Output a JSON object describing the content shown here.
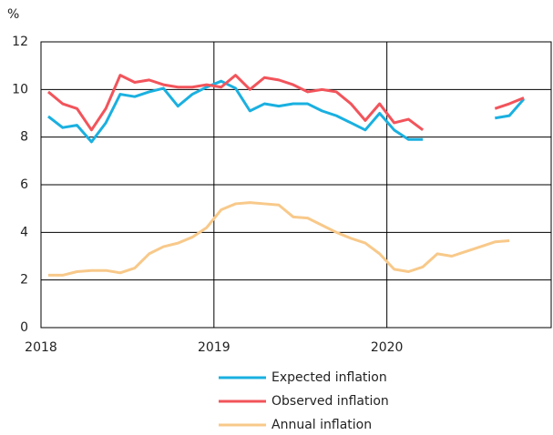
{
  "chart_data": {
    "type": "line",
    "ylabel": "%",
    "x": [
      2018.042,
      2018.125,
      2018.208,
      2018.292,
      2018.375,
      2018.458,
      2018.542,
      2018.625,
      2018.708,
      2018.792,
      2018.875,
      2018.958,
      2019.042,
      2019.125,
      2019.208,
      2019.292,
      2019.375,
      2019.458,
      2019.542,
      2019.625,
      2019.708,
      2019.792,
      2019.875,
      2019.958,
      2020.042,
      2020.125,
      2020.208,
      2020.292,
      2020.375,
      2020.458,
      2020.542,
      2020.625,
      2020.708,
      2020.792
    ],
    "series": [
      {
        "name": "Expected inflation",
        "color": "#1ab0e0",
        "values": [
          8.87,
          8.4,
          8.5,
          7.8,
          8.6,
          9.8,
          9.7,
          9.9,
          10.05,
          9.3,
          9.8,
          10.1,
          10.35,
          10.05,
          9.1,
          9.4,
          9.3,
          9.4,
          9.4,
          9.1,
          8.9,
          8.6,
          8.3,
          9.0,
          8.3,
          7.9,
          7.9,
          null,
          null,
          null,
          null,
          8.8,
          8.9,
          9.6
        ]
      },
      {
        "name": "Observed inflation",
        "color": "#f2545b",
        "values": [
          9.9,
          9.4,
          9.2,
          8.3,
          9.2,
          10.6,
          10.3,
          10.4,
          10.2,
          10.1,
          10.1,
          10.2,
          10.1,
          10.6,
          10.0,
          10.5,
          10.4,
          10.2,
          9.9,
          10.0,
          9.9,
          9.4,
          8.7,
          9.4,
          8.6,
          8.75,
          8.3,
          null,
          null,
          null,
          null,
          9.2,
          9.4,
          9.65
        ]
      },
      {
        "name": "Annual inflation",
        "color": "#f8c98a",
        "values": [
          2.2,
          2.2,
          2.35,
          2.4,
          2.4,
          2.3,
          2.5,
          3.1,
          3.4,
          3.55,
          3.8,
          4.2,
          4.95,
          5.2,
          5.25,
          5.2,
          5.15,
          4.65,
          4.6,
          4.3,
          4.0,
          3.75,
          3.55,
          3.1,
          2.45,
          2.35,
          2.55,
          3.1,
          3.0,
          3.2,
          3.4,
          3.6,
          3.65,
          null
        ]
      }
    ],
    "xlim": [
      2018,
      2020.95
    ],
    "xticks": [
      2018,
      2019,
      2020
    ],
    "ylim": [
      0,
      12
    ],
    "yticks": [
      0,
      2,
      4,
      6,
      8,
      10,
      12
    ],
    "grid": true
  }
}
